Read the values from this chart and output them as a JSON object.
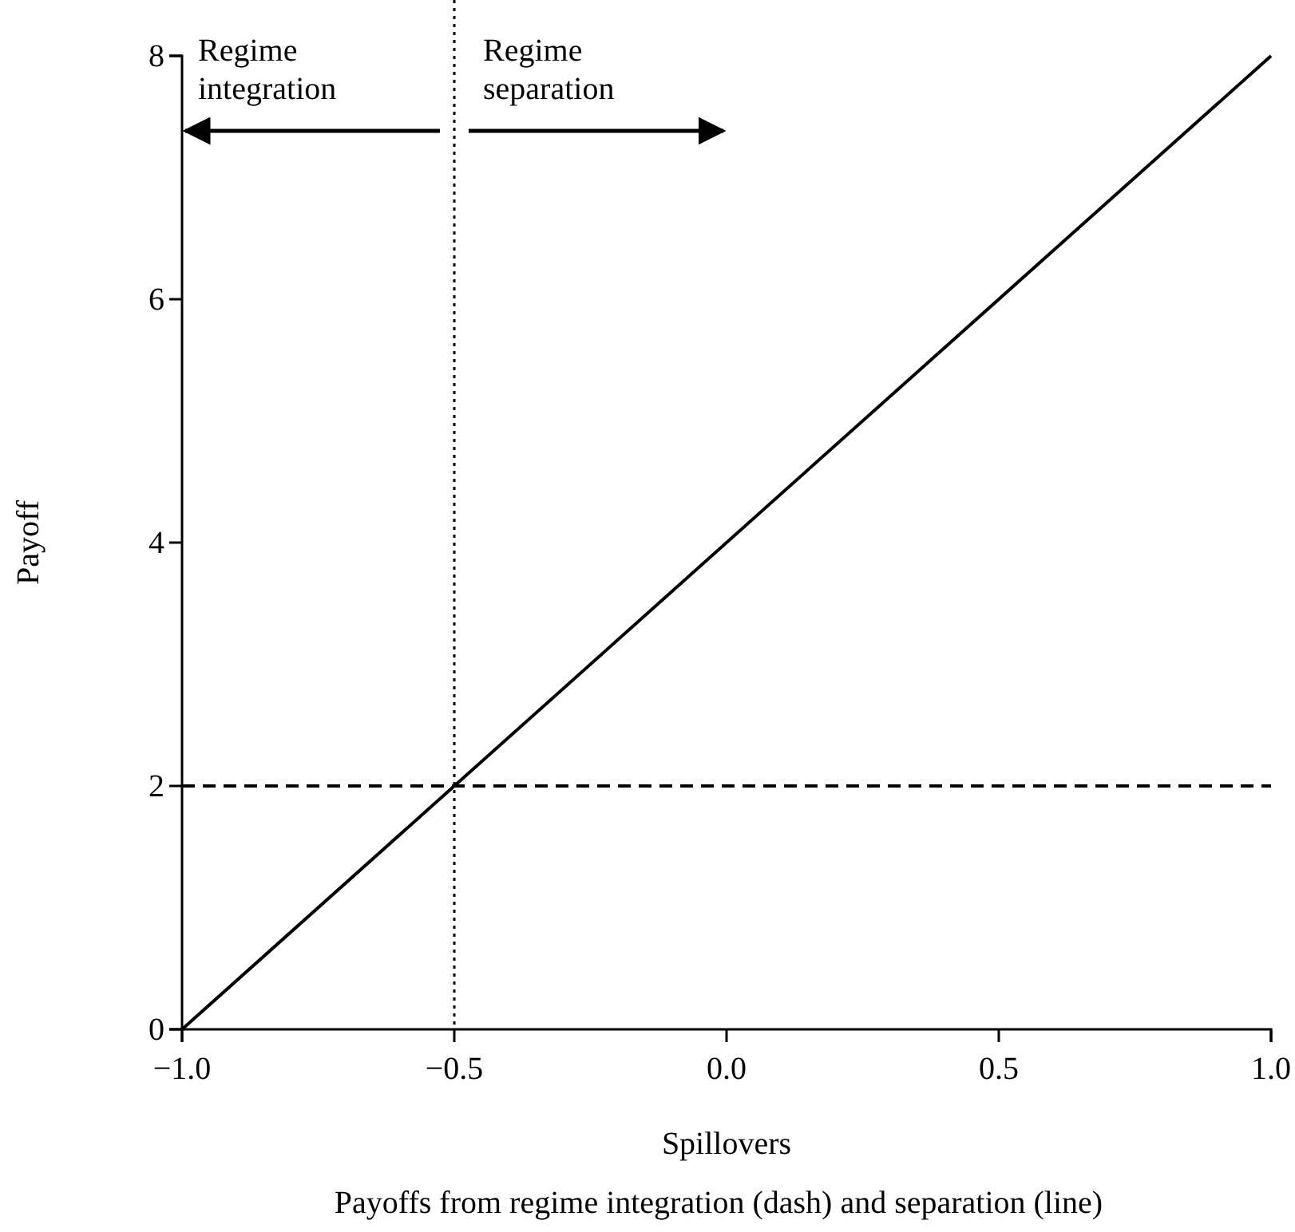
{
  "chart_data": {
    "type": "line",
    "xlabel": "Spillovers",
    "ylabel": "Payoff",
    "x": [
      -1.0,
      1.0
    ],
    "series": [
      {
        "color": "#000000",
        "values": [
          0,
          8
        ],
        "line_style": "solid"
      },
      {
        "color": "#000000",
        "values": [
          2,
          2
        ],
        "line_style": "dashed"
      }
    ],
    "xlim": [
      -1.0,
      1.0
    ],
    "xticks": [
      {
        "value": -1,
        "label": "−1.0"
      },
      {
        "value": -0.5,
        "label": "−0.5"
      },
      {
        "value": 0,
        "label": "0.0"
      },
      {
        "value": 0.5,
        "label": "0.5"
      },
      {
        "value": 1,
        "label": "1.0"
      }
    ],
    "ylim": [
      0,
      8
    ],
    "yticks": [
      0,
      2,
      4,
      6,
      8
    ],
    "ref_lines": [
      {
        "axis": "x",
        "value": -0.5,
        "line_style": "dotted",
        "color": "#000000"
      }
    ],
    "annotations": [
      "Regime integration",
      "Regime separation",
      "Payoffs from regime integration (dash) and separation (line)"
    ],
    "grid": false
  }
}
